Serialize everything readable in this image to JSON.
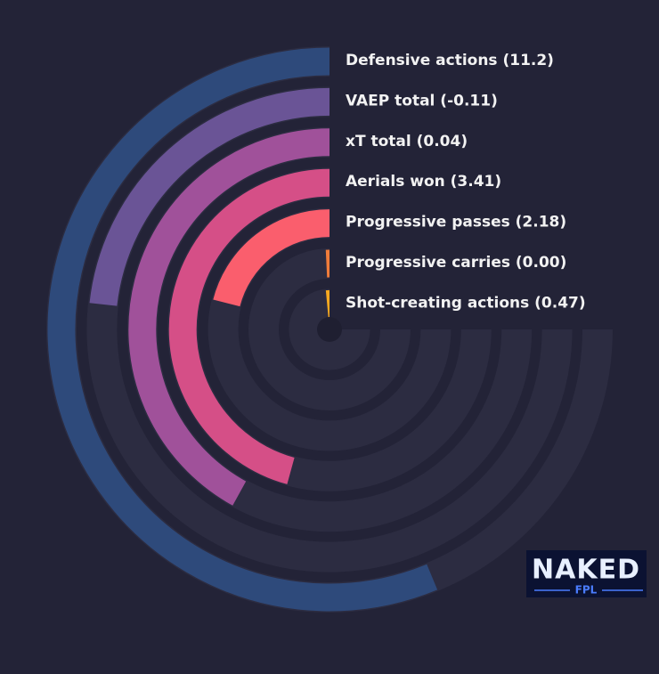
{
  "chart_data": {
    "type": "radial-bar",
    "categories": [
      "Defensive actions (11.2)",
      "VAEP total (-0.11)",
      "xT total (0.04)",
      "Aerials won (3.41)",
      "Progressive passes (2.18)",
      "Progressive carries (0.00)",
      "Shot-creating actions (0.47)"
    ],
    "values": [
      75,
      31,
      56,
      61,
      28,
      1,
      2
    ],
    "colors": [
      "#2e4a7b",
      "#6a5496",
      "#a0519a",
      "#d54f87",
      "#fa5e6d",
      "#f07c3a",
      "#f6a820"
    ],
    "ylim": [
      0,
      100
    ]
  },
  "logo": {
    "title": "NAKED",
    "subtitle": "FPL"
  }
}
